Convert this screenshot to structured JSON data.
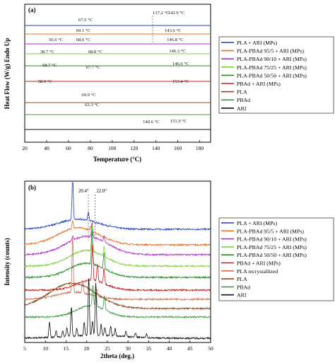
{
  "chart_data": [
    {
      "type": "line",
      "panel_label": "(a)",
      "xlabel": "Temperature (°C)",
      "ylabel": "Heat Flow (W/g) Endo Up",
      "xlim": [
        20,
        190
      ],
      "xticks": [
        20,
        40,
        60,
        80,
        100,
        120,
        140,
        160,
        180
      ],
      "grid": false,
      "legend_position": "right",
      "series": [
        {
          "name": "PLA + ARI (MPs)",
          "color": "#1f3fbf",
          "points": [
            [
              20,
              0.0
            ],
            [
              40,
              0.0
            ],
            [
              55,
              0.0
            ],
            [
              65,
              0.0
            ],
            [
              80,
              0.0
            ],
            [
              100,
              0.0
            ],
            [
              120,
              0.0
            ],
            [
              130,
              0.0
            ],
            [
              137,
              0.0
            ],
            [
              138,
              0.0
            ],
            [
              140,
              0.0
            ],
            [
              143.9,
              0.0
            ],
            [
              148,
              0.0
            ],
            [
              160,
              0.0
            ],
            [
              170,
              0.0
            ],
            [
              190,
              0.0
            ]
          ],
          "annotations": [
            "67.5 °C",
            "137.2 °C",
            "143.9 °C"
          ]
        },
        {
          "name": "PLA-PBAd 95/5 + ARI (MPs)",
          "color": "#e86f1c",
          "points": [
            [
              20,
              0.0
            ],
            [
              60,
              0.0
            ],
            [
              63,
              0.0
            ],
            [
              66,
              0.0
            ],
            [
              69.1,
              0.0
            ],
            [
              71,
              0.0
            ],
            [
              80,
              0.0
            ],
            [
              120,
              0.0
            ],
            [
              135,
              0.0
            ],
            [
              140,
              0.0
            ],
            [
              143.6,
              0.0
            ],
            [
              148,
              0.0
            ],
            [
              160,
              0.0
            ],
            [
              190,
              0.0
            ]
          ],
          "annotations": [
            "69.1 °C",
            "143.6 °C"
          ]
        },
        {
          "name": "PLA-PBAd 90/10 + ARI (MPs)",
          "color": "#b22ecc",
          "points": [
            [
              20,
              0.0
            ],
            [
              50,
              0.0
            ],
            [
              55,
              0.0
            ],
            [
              56.6,
              0.0
            ],
            [
              59,
              0.0
            ],
            [
              65,
              0.0
            ],
            [
              68.6,
              0.0
            ],
            [
              71,
              0.0
            ],
            [
              80,
              0.0
            ],
            [
              120,
              0.0
            ],
            [
              135,
              0.0
            ],
            [
              142,
              0.0
            ],
            [
              146.8,
              0.0
            ],
            [
              152,
              0.0
            ],
            [
              160,
              0.0
            ],
            [
              190,
              0.0
            ]
          ],
          "annotations": [
            "56.6 °C",
            "68.6 °C",
            "146.8 °C"
          ]
        },
        {
          "name": "PLA-PBAd 75/25 + ARI (MPs)",
          "color": "#7fd13c",
          "points": [
            [
              20,
              0.0
            ],
            [
              33,
              0.0
            ],
            [
              37,
              0.0
            ],
            [
              38.7,
              0.0
            ],
            [
              41,
              0.0
            ],
            [
              50,
              0.0
            ],
            [
              58,
              0.0
            ],
            [
              62,
              0.0
            ],
            [
              66,
              0.0
            ],
            [
              68.8,
              0.0
            ],
            [
              72,
              0.0
            ],
            [
              80,
              0.0
            ],
            [
              120,
              0.0
            ],
            [
              135,
              0.0
            ],
            [
              142,
              0.0
            ],
            [
              146.3,
              0.0
            ],
            [
              152,
              0.0
            ],
            [
              160,
              0.0
            ],
            [
              190,
              0.0
            ]
          ],
          "annotations": [
            "38.7 °C",
            "68.8 °C",
            "146.3 °C"
          ]
        },
        {
          "name": "PLA-PBAd 50/50 + ARI (MPs)",
          "color": "#2a8a2a",
          "points": [
            [
              20,
              0.0
            ],
            [
              45,
              0.0
            ],
            [
              52,
              0.0
            ],
            [
              56,
              0.0
            ],
            [
              58.7,
              0.0
            ],
            [
              61,
              0.0
            ],
            [
              64,
              0.0
            ],
            [
              67.7,
              0.0
            ],
            [
              71,
              0.0
            ],
            [
              80,
              0.0
            ],
            [
              120,
              0.0
            ],
            [
              138,
              0.0
            ],
            [
              143,
              0.0
            ],
            [
              146.6,
              0.0
            ],
            [
              151,
              0.0
            ],
            [
              160,
              0.0
            ],
            [
              190,
              0.0
            ]
          ],
          "annotations": [
            "58.7 °C",
            "67.7 °C",
            "146.6 °C"
          ]
        },
        {
          "name": "PBAd + ARI (MPs)",
          "color": "#c81e1e",
          "points": [
            [
              20,
              0.0
            ],
            [
              45,
              0.0
            ],
            [
              52,
              0.0
            ],
            [
              55,
              0.0
            ],
            [
              58.9,
              0.0
            ],
            [
              62,
              0.0
            ],
            [
              66,
              0.0
            ],
            [
              80,
              0.0
            ],
            [
              120,
              0.0
            ],
            [
              140,
              0.0
            ],
            [
              147,
              0.0
            ],
            [
              151,
              0.0
            ],
            [
              153.4,
              0.0
            ],
            [
              156,
              0.0
            ],
            [
              162,
              0.0
            ],
            [
              190,
              0.0
            ]
          ],
          "annotations": [
            "58.9 °C",
            "153.4 °C"
          ]
        },
        {
          "name": "PLA",
          "color": "#8b4a23",
          "points": [
            [
              20,
              0.0
            ],
            [
              40,
              0.0
            ],
            [
              55,
              0.0
            ],
            [
              60,
              0.0
            ],
            [
              63.3,
              0.0
            ],
            [
              66,
              0.0
            ],
            [
              69.9,
              0.0
            ],
            [
              73,
              0.0
            ],
            [
              80,
              0.0
            ],
            [
              120,
              0.0
            ],
            [
              150,
              0.0
            ],
            [
              190,
              0.0
            ]
          ],
          "annotations": [
            "69.9 °C",
            "63.3 °C"
          ]
        },
        {
          "name": "PBAd",
          "color": "#3f9a3f",
          "points": [
            [
              20,
              0.0
            ],
            [
              40,
              0.0
            ],
            [
              50,
              0.0
            ],
            [
              55,
              0.0
            ],
            [
              60,
              0.0
            ],
            [
              62,
              0.0
            ],
            [
              65,
              0.0
            ],
            [
              70,
              0.0
            ],
            [
              80,
              0.0
            ],
            [
              120,
              0.0
            ],
            [
              190,
              0.0
            ]
          ]
        },
        {
          "name": "ARI",
          "color": "#111111",
          "points": [
            [
              20,
              0.0
            ],
            [
              80,
              0.0
            ],
            [
              120,
              0.0
            ],
            [
              132,
              0.0
            ],
            [
              136,
              0.0
            ],
            [
              138.5,
              0.0
            ],
            [
              140.6,
              0.0
            ],
            [
              142.5,
              0.0
            ],
            [
              145,
              0.0
            ],
            [
              148,
              0.0
            ],
            [
              150,
              0.0
            ],
            [
              151.9,
              0.0
            ],
            [
              153,
              0.0
            ],
            [
              155,
              0.0
            ],
            [
              160,
              0.0
            ],
            [
              190,
              0.0
            ]
          ],
          "annotations": [
            "140.6 °C",
            "151.9 °C"
          ]
        }
      ]
    },
    {
      "type": "line",
      "panel_label": "(b)",
      "xlabel": "2theta (deg.)",
      "ylabel": "Intensity (counts)",
      "xlim": [
        5,
        50
      ],
      "xticks": [
        5,
        10,
        15,
        20,
        25,
        30,
        35,
        40,
        45,
        50
      ],
      "grid": false,
      "legend_position": "right",
      "reference_lines": [
        "20.4°",
        "22.0°"
      ],
      "series": [
        {
          "name": "PLA + ARI (MPs)",
          "color": "#1f3fbf",
          "peaks": [
            [
              16.6,
              60
            ],
            [
              20.4,
              12
            ]
          ],
          "amorphous": [
            14,
            18,
            7
          ]
        },
        {
          "name": "PLA-PBAd 95/5 + ARI (MPs)",
          "color": "#e86f1c",
          "peaks": [
            [
              16.6,
              12
            ],
            [
              21.0,
              6
            ]
          ],
          "amorphous": [
            24,
            18,
            7
          ]
        },
        {
          "name": "PLA-PBAd 90/10 + ARI (MPs)",
          "color": "#b22ecc",
          "peaks": [
            [
              16.6,
              6
            ],
            [
              21.3,
              20
            ],
            [
              24.2,
              8
            ]
          ],
          "amorphous": [
            26,
            20,
            7
          ]
        },
        {
          "name": "PLA-PBAd 75/25 + ARI (MPs)",
          "color": "#7fd13c",
          "peaks": [
            [
              21.3,
              36
            ],
            [
              24.2,
              14
            ]
          ],
          "amorphous": [
            22,
            20,
            6
          ]
        },
        {
          "name": "PLA-PBAd 50/50 + ARI (MPs)",
          "color": "#2a8a2a",
          "peaks": [
            [
              21.3,
              46
            ],
            [
              24.2,
              22
            ]
          ],
          "amorphous": [
            20,
            20,
            6
          ]
        },
        {
          "name": "PBAd + ARI (MPs)",
          "color": "#c81e1e",
          "peaks": [
            [
              21.4,
              50
            ],
            [
              22.6,
              24
            ],
            [
              24.2,
              22
            ]
          ],
          "amorphous": [
            14,
            21,
            5
          ]
        },
        {
          "name": "PLA recrystallized",
          "color": "#d07050",
          "peaks": [
            [
              16.6,
              78
            ],
            [
              19.0,
              18
            ],
            [
              22.5,
              10
            ]
          ],
          "amorphous": [
            10,
            17,
            6
          ]
        },
        {
          "name": "PLA",
          "color": "#8b4a23",
          "peaks": [],
          "amorphous": [
            36,
            16.5,
            8
          ]
        },
        {
          "name": "PBAd",
          "color": "#3f9a3f",
          "peaks": [
            [
              21.5,
              30
            ],
            [
              22.3,
              18
            ],
            [
              24.3,
              20
            ]
          ],
          "amorphous": [
            16,
            21,
            5
          ]
        },
        {
          "name": "ARI",
          "color": "#111111",
          "peaks": [
            [
              11.0,
              22
            ],
            [
              12.6,
              8
            ],
            [
              14.2,
              8
            ],
            [
              15.2,
              12
            ],
            [
              16.3,
              42
            ],
            [
              17.6,
              10
            ],
            [
              19.4,
              18
            ],
            [
              20.5,
              82
            ],
            [
              21.4,
              20
            ],
            [
              22.2,
              75
            ],
            [
              23.5,
              16
            ],
            [
              24.4,
              12
            ],
            [
              25.8,
              14
            ],
            [
              26.9,
              10
            ],
            [
              29.5,
              8
            ],
            [
              31.8,
              6
            ],
            [
              34.5,
              5
            ]
          ],
          "amorphous": [
            4,
            22,
            10
          ]
        }
      ]
    }
  ]
}
